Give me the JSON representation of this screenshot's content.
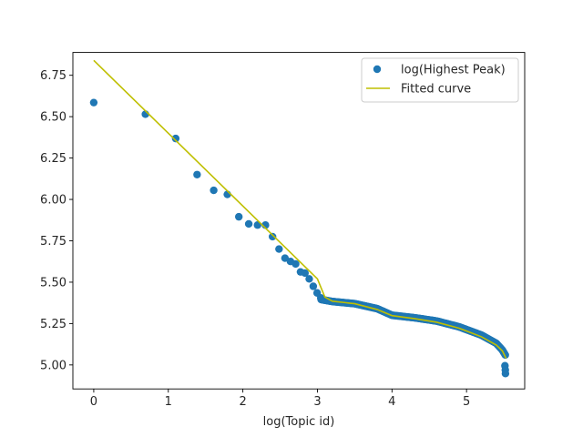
{
  "chart_data": {
    "type": "scatter",
    "title": "",
    "xlabel": "log(Topic id)",
    "ylabel": "",
    "xlim": [
      -0.28,
      5.78
    ],
    "ylim": [
      4.855,
      6.888
    ],
    "xticks": [
      0,
      1,
      2,
      3,
      4,
      5
    ],
    "yticks": [
      5.0,
      5.25,
      5.5,
      5.75,
      6.0,
      6.25,
      6.5,
      6.75
    ],
    "ytick_labels": [
      "5.00",
      "5.25",
      "5.50",
      "5.75",
      "6.00",
      "6.25",
      "6.50",
      "6.75"
    ],
    "grid": false,
    "legend_position": "upper right",
    "series": [
      {
        "name": "log(Highest Peak)",
        "kind": "scatter",
        "color": "#1f77b4",
        "points": [
          [
            0.0,
            6.585
          ],
          [
            0.693,
            6.515
          ],
          [
            1.099,
            6.368
          ],
          [
            1.386,
            6.15
          ],
          [
            1.609,
            6.055
          ],
          [
            1.792,
            6.03
          ],
          [
            1.946,
            5.895
          ],
          [
            2.079,
            5.852
          ],
          [
            2.197,
            5.845
          ],
          [
            2.303,
            5.845
          ],
          [
            2.398,
            5.775
          ],
          [
            2.485,
            5.7
          ],
          [
            2.565,
            5.645
          ],
          [
            2.639,
            5.625
          ],
          [
            2.708,
            5.61
          ],
          [
            2.773,
            5.562
          ],
          [
            2.833,
            5.555
          ],
          [
            2.89,
            5.52
          ],
          [
            2.944,
            5.475
          ],
          [
            2.996,
            5.435
          ],
          [
            3.045,
            5.405
          ]
        ],
        "dense_from": [
          [
            3.05,
            5.395
          ],
          [
            3.2,
            5.383
          ],
          [
            3.5,
            5.37
          ],
          [
            3.8,
            5.34
          ],
          [
            4.0,
            5.3
          ],
          [
            4.3,
            5.285
          ],
          [
            4.6,
            5.265
          ],
          [
            4.9,
            5.23
          ],
          [
            5.2,
            5.18
          ],
          [
            5.4,
            5.13
          ],
          [
            5.48,
            5.09
          ],
          [
            5.52,
            5.06
          ]
        ],
        "tail_points": [
          [
            5.515,
            4.995
          ],
          [
            5.52,
            4.97
          ],
          [
            5.522,
            4.948
          ]
        ]
      },
      {
        "name": "Fitted curve",
        "kind": "line",
        "color": "#bfbf00",
        "points": [
          [
            0.0,
            6.84
          ],
          [
            3.0,
            5.52
          ],
          [
            3.1,
            5.41
          ],
          [
            3.2,
            5.385
          ],
          [
            3.5,
            5.37
          ],
          [
            3.8,
            5.335
          ],
          [
            4.0,
            5.298
          ],
          [
            4.3,
            5.28
          ],
          [
            4.6,
            5.258
          ],
          [
            4.9,
            5.222
          ],
          [
            5.2,
            5.17
          ],
          [
            5.4,
            5.12
          ],
          [
            5.48,
            5.085
          ],
          [
            5.53,
            5.04
          ]
        ]
      }
    ]
  }
}
